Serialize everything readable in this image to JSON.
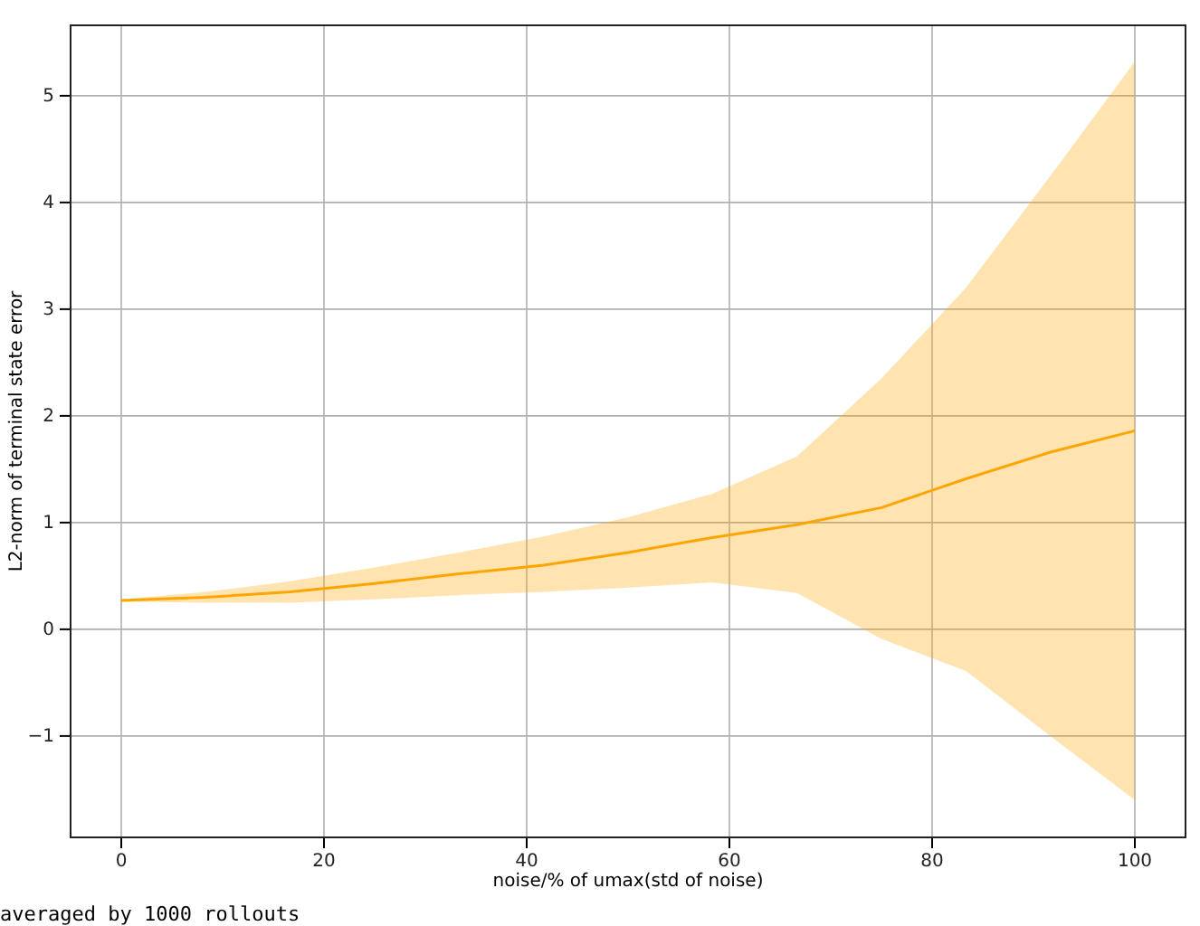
{
  "chart_data": {
    "type": "line",
    "xlabel": "noise/% of umax(std of noise)",
    "ylabel": "L2-norm of terminal state error",
    "x": [
      0,
      8.33,
      16.67,
      25,
      33.33,
      41.67,
      50,
      58.33,
      66.67,
      75,
      83.33,
      91.67,
      100
    ],
    "series": [
      {
        "color": "#ffa500",
        "values": [
          0.27,
          0.3,
          0.35,
          0.43,
          0.52,
          0.6,
          0.72,
          0.86,
          0.98,
          1.14,
          1.41,
          1.66,
          1.86
        ],
        "lower": [
          0.26,
          0.25,
          0.25,
          0.28,
          0.32,
          0.35,
          0.39,
          0.44,
          0.34,
          -0.09,
          -0.39,
          -1.0,
          -1.6
        ],
        "upper": [
          0.28,
          0.35,
          0.45,
          0.58,
          0.72,
          0.87,
          1.05,
          1.27,
          1.62,
          2.35,
          3.2,
          4.25,
          5.32
        ]
      }
    ],
    "xlim": [
      -5,
      105
    ],
    "xticks": [
      0,
      20,
      40,
      60,
      80,
      100
    ],
    "ylim": [
      -1.95,
      5.66
    ],
    "yticks": [
      {
        "value": -1,
        "label": "−1"
      },
      0,
      1,
      2,
      3,
      4,
      5
    ],
    "grid": true,
    "annotations": [
      "averaged by 1000 rollouts"
    ]
  }
}
